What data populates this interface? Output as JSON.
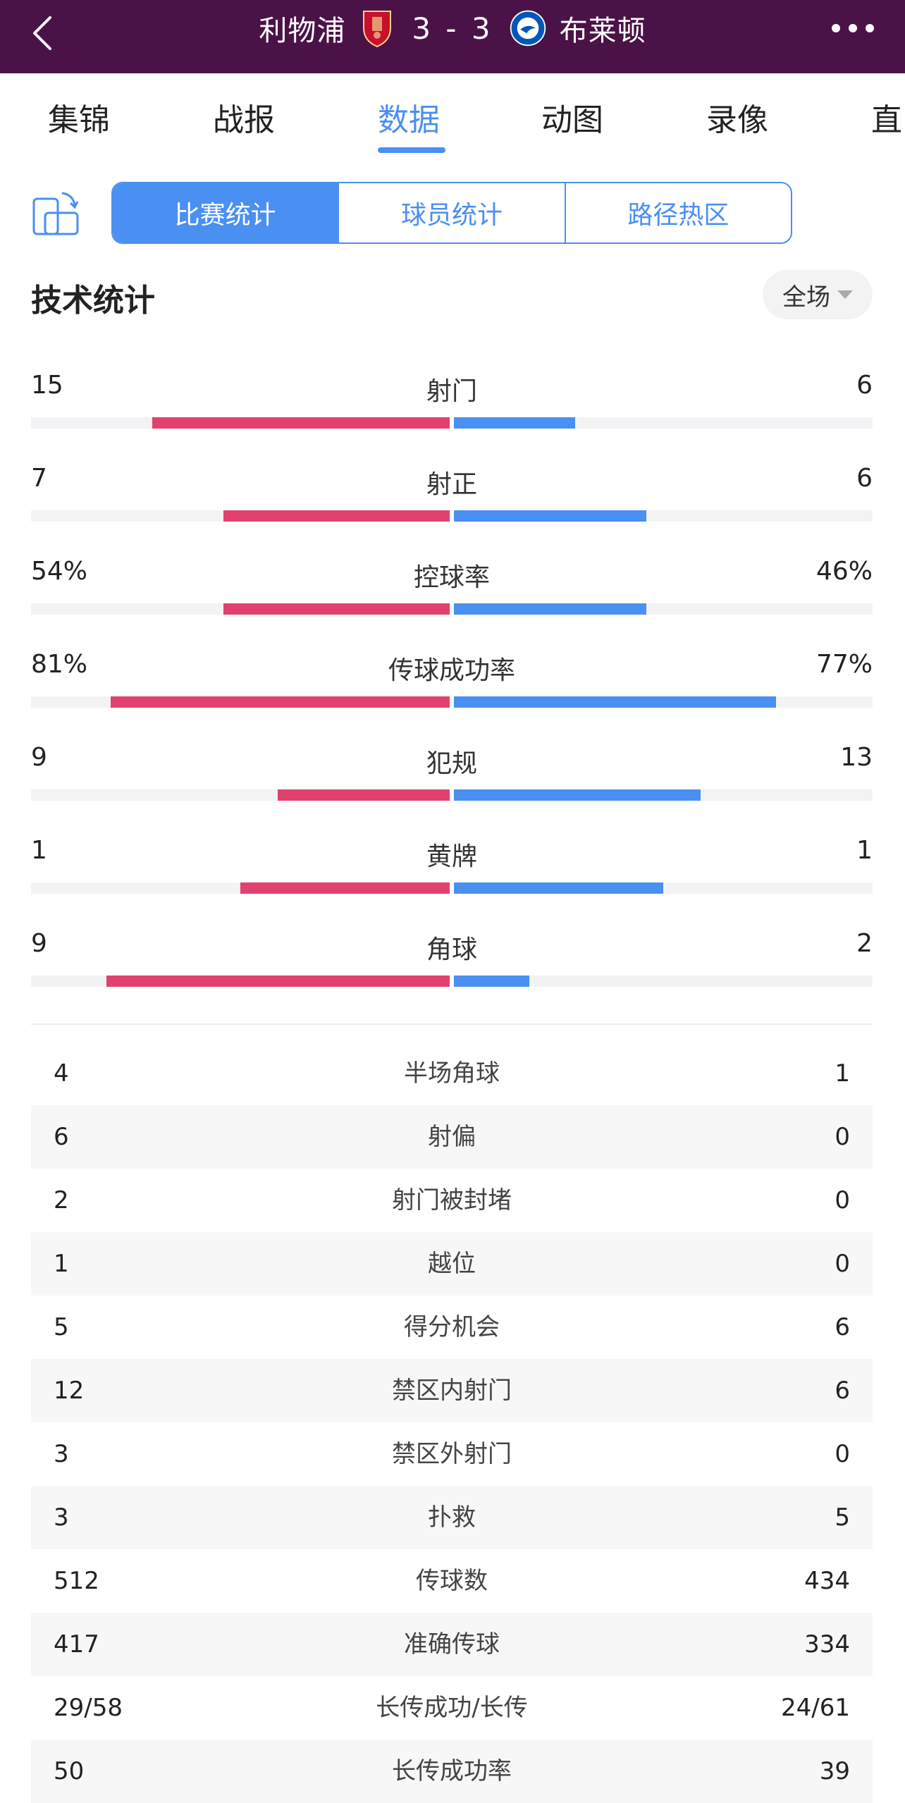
{
  "header": {
    "home_team": "利物浦",
    "away_team": "布莱顿",
    "score": "3 - 3"
  },
  "tabs": [
    "集锦",
    "战报",
    "数据",
    "动图",
    "录像",
    "直"
  ],
  "active_tab": "数据",
  "segments": [
    "比赛统计",
    "球员统计",
    "路径热区"
  ],
  "section_title": "技术统计",
  "period": "全场",
  "bar_stats": [
    {
      "name": "射门",
      "home": "15",
      "away": "6",
      "home_ratio": 0.71,
      "away_ratio": 0.29
    },
    {
      "name": "射正",
      "home": "7",
      "away": "6",
      "home_ratio": 0.54,
      "away_ratio": 0.46
    },
    {
      "name": "控球率",
      "home": "54%",
      "away": "46%",
      "home_ratio": 0.54,
      "away_ratio": 0.46
    },
    {
      "name": "传球成功率",
      "home": "81%",
      "away": "77%",
      "home_ratio": 0.81,
      "away_ratio": 0.77
    },
    {
      "name": "犯规",
      "home": "9",
      "away": "13",
      "home_ratio": 0.41,
      "away_ratio": 0.59
    },
    {
      "name": "黄牌",
      "home": "1",
      "away": "1",
      "home_ratio": 0.5,
      "away_ratio": 0.5
    },
    {
      "name": "角球",
      "home": "9",
      "away": "2",
      "home_ratio": 0.82,
      "away_ratio": 0.18
    }
  ],
  "table_stats": [
    {
      "name": "半场角球",
      "home": "4",
      "away": "1"
    },
    {
      "name": "射偏",
      "home": "6",
      "away": "0"
    },
    {
      "name": "射门被封堵",
      "home": "2",
      "away": "0"
    },
    {
      "name": "越位",
      "home": "1",
      "away": "0"
    },
    {
      "name": "得分机会",
      "home": "5",
      "away": "6"
    },
    {
      "name": "禁区内射门",
      "home": "12",
      "away": "6"
    },
    {
      "name": "禁区外射门",
      "home": "3",
      "away": "0"
    },
    {
      "name": "扑救",
      "home": "3",
      "away": "5"
    },
    {
      "name": "传球数",
      "home": "512",
      "away": "434"
    },
    {
      "name": "准确传球",
      "home": "417",
      "away": "334"
    },
    {
      "name": "长传成功/长传",
      "home": "29/58",
      "away": "24/61"
    },
    {
      "name": "长传成功率",
      "home": "50",
      "away": "39"
    }
  ],
  "colors": {
    "header_bg": "#4a1247",
    "accent": "#4a8ff2",
    "home_bar": "#e2406f",
    "away_bar": "#4a8ff2"
  }
}
